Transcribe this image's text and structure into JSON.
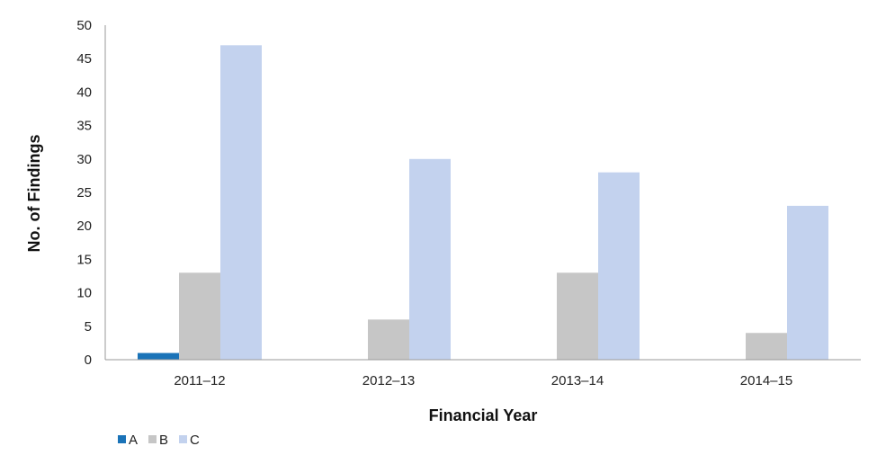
{
  "chart_data": {
    "type": "bar",
    "categories": [
      "2011–12",
      "2012–13",
      "2013–14",
      "2014–15"
    ],
    "series": [
      {
        "name": "A",
        "values": [
          1,
          0,
          0,
          0
        ],
        "color": "#1a73b8"
      },
      {
        "name": "B",
        "values": [
          13,
          6,
          13,
          4
        ],
        "color": "#c6c6c6"
      },
      {
        "name": "C",
        "values": [
          47,
          30,
          28,
          23
        ],
        "color": "#c3d2ee"
      }
    ],
    "xlabel": "Financial Year",
    "ylabel": "No. of Findings",
    "ylim": [
      0,
      50
    ],
    "yticks": [
      "0",
      "5",
      "10",
      "15",
      "20",
      "25",
      "30",
      "35",
      "40",
      "45",
      "50"
    ],
    "grid": false,
    "legend": "bottom-left"
  }
}
